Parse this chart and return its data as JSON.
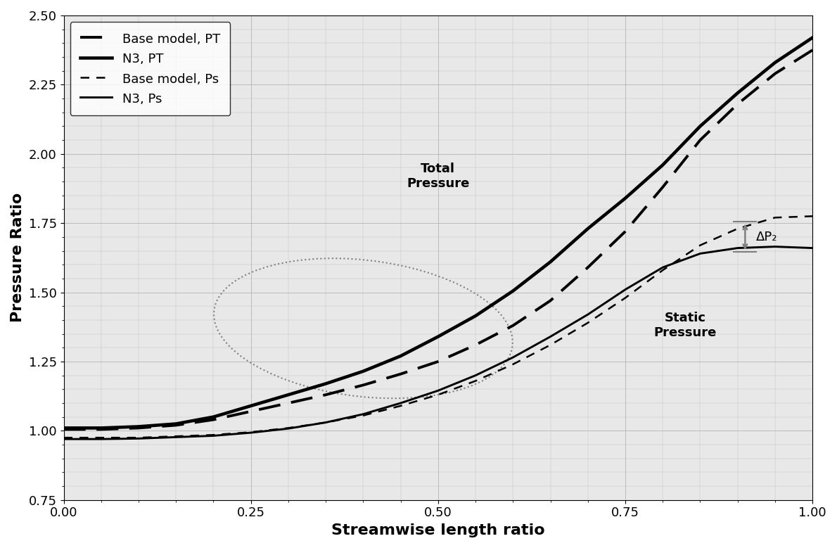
{
  "title": "",
  "xlabel": "Streamwise length ratio",
  "ylabel": "Pressure Ratio",
  "xlim": [
    0.0,
    1.0
  ],
  "ylim": [
    0.75,
    2.5
  ],
  "xticks": [
    0.0,
    0.25,
    0.5,
    0.75,
    1.0
  ],
  "yticks": [
    0.75,
    1.0,
    1.25,
    1.5,
    1.75,
    2.0,
    2.25,
    2.5
  ],
  "legend_entries": [
    "Base model, PT",
    "N3, PT",
    "Base model, Ps",
    "N3, Ps"
  ],
  "background_color": "#ffffff",
  "grid_color": "#aaaaaa",
  "line_color": "#000000",
  "annotation_color": "#808080",
  "total_pressure_label": "Total\nPressure",
  "static_pressure_label": "Static\nPressure",
  "dp2_label": "ΔP₂",
  "figsize": [
    11.9,
    7.79
  ],
  "dpi": 100,
  "base_PT_x": [
    0.0,
    0.05,
    0.1,
    0.15,
    0.2,
    0.25,
    0.3,
    0.35,
    0.4,
    0.45,
    0.5,
    0.55,
    0.6,
    0.65,
    0.7,
    0.75,
    0.8,
    0.85,
    0.9,
    0.95,
    1.0
  ],
  "base_PT_y": [
    1.005,
    1.005,
    1.01,
    1.02,
    1.04,
    1.07,
    1.1,
    1.13,
    1.165,
    1.205,
    1.25,
    1.31,
    1.38,
    1.47,
    1.59,
    1.72,
    1.88,
    2.05,
    2.18,
    2.29,
    2.375
  ],
  "n3_PT_x": [
    0.0,
    0.05,
    0.1,
    0.15,
    0.2,
    0.25,
    0.3,
    0.35,
    0.4,
    0.45,
    0.5,
    0.55,
    0.6,
    0.65,
    0.7,
    0.75,
    0.8,
    0.85,
    0.9,
    0.95,
    1.0
  ],
  "n3_PT_y": [
    1.01,
    1.01,
    1.015,
    1.025,
    1.05,
    1.09,
    1.13,
    1.17,
    1.215,
    1.27,
    1.34,
    1.415,
    1.505,
    1.61,
    1.73,
    1.84,
    1.96,
    2.1,
    2.22,
    2.33,
    2.42
  ],
  "base_Ps_x": [
    0.0,
    0.05,
    0.1,
    0.15,
    0.2,
    0.25,
    0.3,
    0.35,
    0.4,
    0.45,
    0.5,
    0.55,
    0.6,
    0.65,
    0.7,
    0.75,
    0.8,
    0.85,
    0.9,
    0.95,
    1.0
  ],
  "base_Ps_y": [
    0.975,
    0.975,
    0.975,
    0.98,
    0.985,
    0.995,
    1.01,
    1.03,
    1.055,
    1.09,
    1.13,
    1.18,
    1.24,
    1.31,
    1.39,
    1.48,
    1.58,
    1.67,
    1.73,
    1.77,
    1.775
  ],
  "n3_Ps_x": [
    0.0,
    0.05,
    0.1,
    0.15,
    0.2,
    0.25,
    0.3,
    0.35,
    0.4,
    0.45,
    0.5,
    0.55,
    0.6,
    0.65,
    0.7,
    0.75,
    0.8,
    0.85,
    0.9,
    0.95,
    1.0
  ],
  "n3_Ps_y": [
    0.97,
    0.97,
    0.972,
    0.977,
    0.982,
    0.993,
    1.008,
    1.03,
    1.06,
    1.1,
    1.145,
    1.2,
    1.265,
    1.34,
    1.42,
    1.51,
    1.59,
    1.64,
    1.66,
    1.665,
    1.66
  ]
}
